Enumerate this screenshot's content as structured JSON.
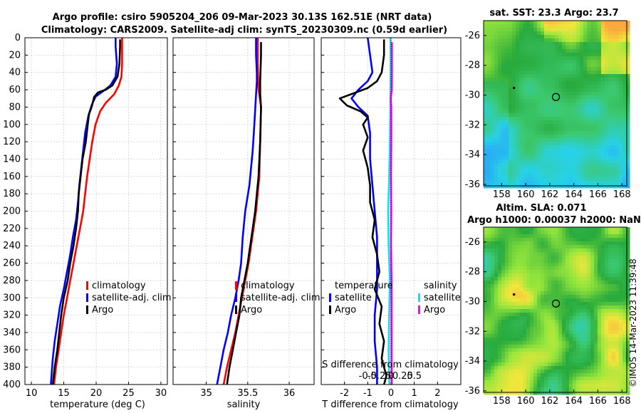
{
  "header": {
    "title_line1": "Argo profile: csiro 5905204_206 09-Mar-2023 30.13S 162.51E (NRT data)",
    "title_line2": "Climatology: CARS2009. Satellite-adj clim: synTS_20230309.nc (0.59d earlier)"
  },
  "depth_ticks": [
    "0",
    "20",
    "40",
    "60",
    "80",
    "100",
    "120",
    "140",
    "160",
    "180",
    "200",
    "220",
    "240",
    "260",
    "280",
    "300",
    "320",
    "340",
    "360",
    "380",
    "400"
  ],
  "chart_data": [
    {
      "type": "line",
      "name": "temperature-profile",
      "xlabel": "temperature (deg C)",
      "ylabel": "",
      "xlim": [
        9,
        31
      ],
      "ylim": [
        400,
        0
      ],
      "xticks": [
        "10",
        "15",
        "20",
        "25",
        "30"
      ],
      "legend": [
        "climatology",
        "satellite-adj. clim",
        "Argo"
      ],
      "series": [
        {
          "name": "climatology",
          "color": "#ff0000",
          "points": [
            [
              24.0,
              0
            ],
            [
              24.0,
              10
            ],
            [
              24.0,
              30
            ],
            [
              23.9,
              45
            ],
            [
              23.5,
              55
            ],
            [
              22.8,
              65
            ],
            [
              21.5,
              75
            ],
            [
              20.6,
              85
            ],
            [
              19.9,
              100
            ],
            [
              19.4,
              120
            ],
            [
              19.0,
              140
            ],
            [
              18.6,
              160
            ],
            [
              18.3,
              180
            ],
            [
              18.0,
              200
            ],
            [
              17.5,
              220
            ],
            [
              17.0,
              240
            ],
            [
              16.5,
              260
            ],
            [
              16.0,
              280
            ],
            [
              15.5,
              300
            ],
            [
              15.0,
              320
            ],
            [
              14.6,
              340
            ],
            [
              14.2,
              360
            ],
            [
              13.8,
              380
            ],
            [
              13.5,
              400
            ]
          ]
        },
        {
          "name": "satellite-adj. clim",
          "color": "#0000ff",
          "points": [
            [
              23.0,
              0
            ],
            [
              23.0,
              10
            ],
            [
              23.2,
              30
            ],
            [
              23.0,
              45
            ],
            [
              22.2,
              55
            ],
            [
              21.0,
              62
            ],
            [
              19.9,
              68
            ],
            [
              19.3,
              78
            ],
            [
              18.8,
              90
            ],
            [
              18.3,
              110
            ],
            [
              18.0,
              130
            ],
            [
              17.7,
              150
            ],
            [
              17.4,
              170
            ],
            [
              17.2,
              190
            ],
            [
              16.9,
              210
            ],
            [
              16.4,
              230
            ],
            [
              16.0,
              250
            ],
            [
              15.5,
              270
            ],
            [
              15.0,
              290
            ],
            [
              14.4,
              310
            ],
            [
              14.0,
              330
            ],
            [
              13.6,
              350
            ],
            [
              13.3,
              370
            ],
            [
              13.1,
              390
            ],
            [
              13.0,
              400
            ]
          ]
        },
        {
          "name": "Argo",
          "color": "#000000",
          "points": [
            [
              23.7,
              2
            ],
            [
              23.7,
              10
            ],
            [
              23.6,
              30
            ],
            [
              23.3,
              45
            ],
            [
              22.5,
              55
            ],
            [
              21.5,
              60
            ],
            [
              20.3,
              63
            ],
            [
              19.7,
              68
            ],
            [
              19.3,
              80
            ],
            [
              18.9,
              88
            ],
            [
              18.7,
              100
            ],
            [
              18.4,
              120
            ],
            [
              17.9,
              140
            ],
            [
              17.6,
              160
            ],
            [
              17.3,
              180
            ],
            [
              17.2,
              200
            ],
            [
              16.9,
              220
            ],
            [
              16.5,
              240
            ],
            [
              16.0,
              260
            ],
            [
              15.6,
              280
            ],
            [
              15.0,
              300
            ],
            [
              14.6,
              320
            ],
            [
              14.3,
              340
            ],
            [
              14.0,
              360
            ],
            [
              13.6,
              380
            ],
            [
              13.3,
              400
            ]
          ]
        }
      ]
    },
    {
      "type": "line",
      "name": "salinity-profile",
      "xlabel": "salinity",
      "ylabel": "",
      "xlim": [
        34.6,
        36.3
      ],
      "ylim": [
        400,
        0
      ],
      "xticks": [
        "35",
        "35.5",
        "36"
      ],
      "legend": [
        "climatology",
        "satellite-adj. clim",
        "Argo"
      ],
      "series": [
        {
          "name": "climatology",
          "color": "#ff0000",
          "points": [
            [
              35.62,
              0
            ],
            [
              35.62,
              30
            ],
            [
              35.63,
              60
            ],
            [
              35.66,
              80
            ],
            [
              35.65,
              120
            ],
            [
              35.64,
              160
            ],
            [
              35.62,
              180
            ],
            [
              35.6,
              200
            ],
            [
              35.57,
              220
            ],
            [
              35.54,
              240
            ],
            [
              35.51,
              260
            ],
            [
              35.47,
              280
            ],
            [
              35.43,
              300
            ],
            [
              35.39,
              320
            ],
            [
              35.35,
              340
            ],
            [
              35.3,
              360
            ],
            [
              35.25,
              380
            ],
            [
              35.21,
              400
            ]
          ]
        },
        {
          "name": "satellite-adj. clim",
          "color": "#0000ff",
          "points": [
            [
              35.6,
              0
            ],
            [
              35.6,
              20
            ],
            [
              35.61,
              40
            ],
            [
              35.61,
              50
            ],
            [
              35.58,
              100
            ],
            [
              35.56,
              130
            ],
            [
              35.52,
              170
            ],
            [
              35.47,
              200
            ],
            [
              35.44,
              230
            ],
            [
              35.42,
              260
            ],
            [
              35.39,
              280
            ],
            [
              35.35,
              300
            ],
            [
              35.3,
              320
            ],
            [
              35.26,
              340
            ],
            [
              35.21,
              360
            ],
            [
              35.17,
              380
            ],
            [
              35.13,
              400
            ]
          ]
        },
        {
          "name": "Argo",
          "color": "#000000",
          "points": [
            [
              35.66,
              5
            ],
            [
              35.66,
              20
            ],
            [
              35.65,
              50
            ],
            [
              35.65,
              65
            ],
            [
              35.66,
              80
            ],
            [
              35.65,
              120
            ],
            [
              35.63,
              160
            ],
            [
              35.61,
              180
            ],
            [
              35.59,
              200
            ],
            [
              35.56,
              220
            ],
            [
              35.53,
              240
            ],
            [
              35.5,
              260
            ],
            [
              35.46,
              280
            ],
            [
              35.42,
              300
            ],
            [
              35.4,
              320
            ],
            [
              35.36,
              340
            ],
            [
              35.32,
              360
            ],
            [
              35.28,
              380
            ],
            [
              35.25,
              400
            ]
          ]
        }
      ]
    },
    {
      "type": "line",
      "name": "difference-profile",
      "xlabel": "T difference from climatology",
      "xlabel_top": "S difference from climatology",
      "xlim": [
        -3,
        3
      ],
      "ylim": [
        400,
        0
      ],
      "xticks": [
        "-2",
        "-1",
        "0",
        "1",
        "2"
      ],
      "xticks_s": [
        "-0.5",
        "-0.25",
        "0",
        "0.25",
        "0.5"
      ],
      "legend_t_title": "temperature",
      "legend_s_title": "salinity",
      "legend": [
        "satellite",
        "Argo",
        "satellite",
        "Argo"
      ],
      "series": [
        {
          "name": "T satellite",
          "color": "#0000ff",
          "points": [
            [
              -1.0,
              0
            ],
            [
              -0.9,
              20
            ],
            [
              -0.8,
              40
            ],
            [
              -1.0,
              50
            ],
            [
              -1.4,
              60
            ],
            [
              -1.7,
              70
            ],
            [
              -1.4,
              80
            ],
            [
              -1.0,
              90
            ],
            [
              -0.9,
              110
            ],
            [
              -0.9,
              140
            ],
            [
              -0.8,
              170
            ],
            [
              -0.7,
              200
            ],
            [
              -0.6,
              230
            ],
            [
              -0.6,
              260
            ],
            [
              -0.6,
              290
            ],
            [
              -0.7,
              320
            ],
            [
              -0.7,
              350
            ],
            [
              -0.6,
              380
            ],
            [
              -0.6,
              400
            ]
          ]
        },
        {
          "name": "T Argo",
          "color": "#000000",
          "points": [
            [
              -0.3,
              2
            ],
            [
              -0.3,
              20
            ],
            [
              -0.4,
              40
            ],
            [
              -0.6,
              50
            ],
            [
              -1.0,
              58
            ],
            [
              -1.7,
              65
            ],
            [
              -2.2,
              70
            ],
            [
              -1.9,
              78
            ],
            [
              -1.3,
              85
            ],
            [
              -1.0,
              92
            ],
            [
              -1.2,
              100
            ],
            [
              -1.0,
              115
            ],
            [
              -1.2,
              130
            ],
            [
              -1.0,
              150
            ],
            [
              -0.9,
              170
            ],
            [
              -0.9,
              190
            ],
            [
              -0.7,
              210
            ],
            [
              -0.8,
              230
            ],
            [
              -0.6,
              250
            ],
            [
              -0.5,
              270
            ],
            [
              -0.7,
              290
            ],
            [
              -0.4,
              310
            ],
            [
              -0.5,
              330
            ],
            [
              -0.3,
              350
            ],
            [
              -0.4,
              370
            ],
            [
              -0.2,
              390
            ],
            [
              -0.3,
              400
            ]
          ]
        },
        {
          "name": "S satellite",
          "color": "#00e5ee",
          "points": [
            [
              -0.02,
              0
            ],
            [
              -0.02,
              40
            ],
            [
              -0.03,
              80
            ],
            [
              -0.05,
              120
            ],
            [
              -0.08,
              160
            ],
            [
              -0.12,
              200
            ],
            [
              -0.1,
              240
            ],
            [
              -0.05,
              280
            ],
            [
              -0.08,
              320
            ],
            [
              -0.1,
              360
            ],
            [
              -0.07,
              400
            ]
          ]
        },
        {
          "name": "S Argo",
          "color": "#ff00ff",
          "points": [
            [
              0.04,
              5
            ],
            [
              0.04,
              40
            ],
            [
              0.03,
              60
            ],
            [
              -0.01,
              70
            ],
            [
              0.01,
              80
            ],
            [
              0.01,
              120
            ],
            [
              0.0,
              160
            ],
            [
              0.01,
              200
            ],
            [
              0.0,
              240
            ],
            [
              0.02,
              280
            ],
            [
              0.02,
              320
            ],
            [
              0.02,
              360
            ],
            [
              0.03,
              400
            ]
          ]
        }
      ]
    },
    {
      "type": "heatmap",
      "name": "sst-map",
      "title": "sat. SST: 23.3 Argo: 23.7",
      "xticks": [
        "158",
        "160",
        "162",
        "164",
        "166",
        "168"
      ],
      "yticks": [
        "-26",
        "-28",
        "-30",
        "-32",
        "-34",
        "-36"
      ],
      "marker": {
        "lon": 162.51,
        "lat": -30.13
      }
    },
    {
      "type": "heatmap",
      "name": "sla-map",
      "title_line1": "Altim. SLA: 0.071",
      "title_line2": "Argo h1000: 0.00037 h2000: NaN",
      "xticks": [
        "158",
        "160",
        "162",
        "164",
        "166",
        "168"
      ],
      "yticks": [
        "-26",
        "-28",
        "-30",
        "-32",
        "-34",
        "-36"
      ],
      "marker": {
        "lon": 162.51,
        "lat": -30.13
      }
    }
  ],
  "watermark": "©IMOS 14-Mar-2023 11:39:48",
  "colors": {
    "grid": "#d9d9d9",
    "frame": "#000000"
  }
}
